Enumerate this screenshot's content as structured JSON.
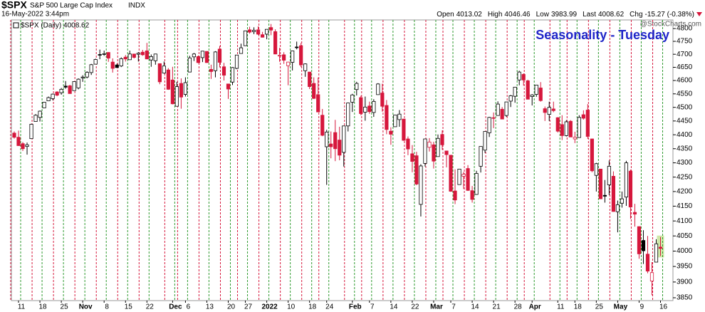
{
  "chart_data": {
    "type": "candlestick",
    "title": "$SPX",
    "subtitle": "S&P 500 Large Cap Index",
    "exchange": "INDX",
    "date": "16-May-2022 3:44pm",
    "quote": [
      {
        "label": "Open",
        "value": "4013.02"
      },
      {
        "label": "High",
        "value": "4046.46"
      },
      {
        "label": "Low",
        "value": "3983.99"
      },
      {
        "label": "Last",
        "value": "4008.62"
      },
      {
        "label": "Chg",
        "value": "-15.27 (-0.38%)"
      }
    ],
    "watermark": "@StockCharts.com",
    "legend": "$SPX (Daily) 4008.62",
    "annotation": "Seasonality - Tuesday",
    "log_scale": true,
    "up_color": "#000000",
    "down_color": "#d6173c",
    "categories": [
      null,
      "11",
      null,
      null,
      null,
      null,
      "18",
      null,
      null,
      null,
      null,
      "25",
      null,
      null,
      null,
      null,
      "Nov",
      null,
      null,
      null,
      null,
      "8",
      null,
      null,
      null,
      null,
      "15",
      null,
      null,
      null,
      null,
      "22",
      null,
      null,
      null,
      null,
      null,
      "Dec",
      null,
      null,
      "6",
      null,
      null,
      null,
      null,
      "13",
      null,
      null,
      null,
      null,
      "20",
      null,
      null,
      null,
      "27",
      null,
      null,
      null,
      null,
      "2022",
      null,
      null,
      null,
      null,
      "10",
      null,
      null,
      null,
      null,
      "18",
      null,
      null,
      null,
      "24",
      null,
      null,
      null,
      null,
      null,
      "Feb",
      null,
      null,
      null,
      "7",
      null,
      null,
      null,
      null,
      "14",
      null,
      null,
      null,
      null,
      "22",
      null,
      null,
      null,
      null,
      "Mar",
      null,
      null,
      null,
      "7",
      null,
      null,
      null,
      null,
      "14",
      null,
      null,
      null,
      null,
      "21",
      null,
      null,
      null,
      null,
      "28",
      null,
      null,
      null,
      "Apr",
      null,
      null,
      null,
      null,
      null,
      "11",
      null,
      null,
      null,
      "18",
      null,
      null,
      null,
      null,
      "25",
      null,
      null,
      null,
      null,
      "May",
      null,
      null,
      null,
      null,
      "9",
      null,
      null,
      null,
      null,
      "16"
    ],
    "open": [
      4406,
      4391,
      4368,
      4358,
      4386,
      4448,
      4463,
      4498,
      4524,
      4532,
      4557,
      4554,
      4579,
      4580,
      4562,
      4572,
      4610,
      4613,
      4630,
      4662,
      4699,
      4701,
      4707,
      4670,
      4659,
      4655,
      4689,
      4679,
      4701,
      4700,
      4708,
      4713,
      4678,
      4675,
      4664,
      4628,
      4640,
      4602,
      4504,
      4589,
      4548,
      4632,
      4690,
      4691,
      4687,
      4711,
      4642,
      4637,
      4720,
      4652,
      4587,
      4594,
      4646,
      4703,
      4733,
      4795,
      4788,
      4795,
      4776,
      4778,
      4804,
      4788,
      4693,
      4698,
      4656,
      4669,
      4728,
      4733,
      4637,
      4632,
      4589,
      4547,
      4471,
      4357,
      4367,
      4408,
      4381,
      4337,
      4432,
      4519,
      4566,
      4536,
      4482,
      4505,
      4481,
      4547,
      4553,
      4507,
      4413,
      4429,
      4455,
      4457,
      4385,
      4332,
      4325,
      4156,
      4298,
      4355,
      4364,
      4322,
      4401,
      4342,
      4327,
      4202,
      4224,
      4253,
      4280,
      4203,
      4190,
      4288,
      4345,
      4407,
      4462,
      4470,
      4493,
      4470,
      4523,
      4541,
      4602,
      4623,
      4599,
      4540,
      4548,
      4572,
      4495,
      4474,
      4494,
      4462,
      4437,
      4397,
      4449,
      4385,
      4390,
      4473,
      4490,
      4385,
      4256,
      4278,
      4187,
      4223,
      4253,
      4131,
      4160,
      4181,
      4271,
      4129,
      4081,
      4035,
      3990,
      3903,
      3964,
      4013.02
    ],
    "high": [
      4412,
      4415,
      4374,
      4372,
      4440,
      4475,
      4488,
      4520,
      4540,
      4551,
      4560,
      4572,
      4598,
      4584,
      4597,
      4608,
      4620,
      4635,
      4663,
      4683,
      4718,
      4714,
      4708,
      4684,
      4664,
      4688,
      4697,
      4714,
      4701,
      4708,
      4717,
      4744,
      4699,
      4702,
      4664,
      4672,
      4647,
      4652,
      4595,
      4608,
      4612,
      4694,
      4705,
      4695,
      4713,
      4711,
      4660,
      4712,
      4732,
      4667,
      4588,
      4651,
      4697,
      4741,
      4792,
      4807,
      4805,
      4809,
      4787,
      4797,
      4818,
      4797,
      4725,
      4708,
      4671,
      4714,
      4749,
      4744,
      4665,
      4632,
      4612,
      4611,
      4494,
      4418,
      4412,
      4454,
      4429,
      4432,
      4517,
      4550,
      4595,
      4543,
      4540,
      4521,
      4530,
      4590,
      4588,
      4527,
      4427,
      4473,
      4490,
      4457,
      4394,
      4363,
      4339,
      4295,
      4385,
      4388,
      4375,
      4401,
      4416,
      4342,
      4327,
      4277,
      4277,
      4268,
      4292,
      4219,
      4272,
      4358,
      4412,
      4465,
      4481,
      4522,
      4501,
      4520,
      4546,
      4576,
      4637,
      4627,
      4603,
      4549,
      4583,
      4594,
      4503,
      4521,
      4521,
      4464,
      4471,
      4453,
      4453,
      4411,
      4471,
      4489,
      4512,
      4386,
      4300,
      4278,
      4240,
      4308,
      4270,
      4169,
      4200,
      4307,
      4276,
      4158,
      4082,
      4069,
      4050,
      3964,
      4039,
      4046.46
    ],
    "low": [
      4386,
      4360,
      4342,
      4329,
      4386,
      4448,
      4448,
      4498,
      4524,
      4526,
      4541,
      4547,
      4569,
      4551,
      4562,
      4567,
      4595,
      4608,
      4621,
      4662,
      4681,
      4694,
      4671,
      4630,
      4648,
      4651,
      4672,
      4679,
      4684,
      4672,
      4694,
      4681,
      4652,
      4660,
      4586,
      4626,
      4565,
      4511,
      4504,
      4495,
      4540,
      4632,
      4674,
      4666,
      4670,
      4667,
      4606,
      4612,
      4650,
      4600,
      4531,
      4583,
      4643,
      4703,
      4733,
      4780,
      4778,
      4775,
      4765,
      4758,
      4774,
      4700,
      4671,
      4663,
      4582,
      4638,
      4719,
      4651,
      4614,
      4568,
      4531,
      4483,
      4395,
      4223,
      4316,
      4306,
      4309,
      4287,
      4412,
      4483,
      4544,
      4471,
      4451,
      4476,
      4465,
      4547,
      4484,
      4402,
      4364,
      4429,
      4429,
      4378,
      4327,
      4267,
      4222,
      4115,
      4287,
      4340,
      4280,
      4322,
      4346,
      4284,
      4199,
      4157,
      4224,
      4209,
      4202,
      4162,
      4189,
      4266,
      4335,
      4392,
      4424,
      4469,
      4456,
      4465,
      4501,
      4517,
      4582,
      4581,
      4530,
      4507,
      4539,
      4521,
      4450,
      4450,
      4482,
      4408,
      4381,
      4394,
      4392,
      4370,
      4390,
      4455,
      4385,
      4267,
      4200,
      4175,
      4162,
      4188,
      4131,
      4062,
      4145,
      4151,
      4107,
      4081,
      3975,
      3958,
      3928,
      3858,
      3964,
      3983.99
    ],
    "close": [
      4391,
      4361,
      4350,
      4364,
      4438,
      4471,
      4486,
      4519,
      4536,
      4549,
      4545,
      4567,
      4575,
      4551,
      4596,
      4605,
      4613,
      4631,
      4660,
      4680,
      4697,
      4702,
      4685,
      4646,
      4649,
      4683,
      4682,
      4701,
      4688,
      4704,
      4698,
      4682,
      4691,
      4701,
      4595,
      4655,
      4567,
      4513,
      4577,
      4538,
      4592,
      4686,
      4701,
      4668,
      4712,
      4668,
      4634,
      4709,
      4669,
      4620,
      4568,
      4649,
      4697,
      4725,
      4791,
      4786,
      4793,
      4778,
      4766,
      4797,
      4794,
      4701,
      4696,
      4677,
      4670,
      4713,
      4726,
      4659,
      4663,
      4577,
      4533,
      4483,
      4398,
      4410,
      4357,
      4350,
      4327,
      4432,
      4516,
      4546,
      4589,
      4477,
      4501,
      4484,
      4522,
      4587,
      4504,
      4419,
      4402,
      4472,
      4475,
      4380,
      4349,
      4305,
      4226,
      4289,
      4385,
      4374,
      4306,
      4387,
      4364,
      4329,
      4201,
      4171,
      4278,
      4260,
      4204,
      4173,
      4263,
      4358,
      4412,
      4463,
      4461,
      4512,
      4457,
      4520,
      4543,
      4575,
      4632,
      4602,
      4530,
      4546,
      4583,
      4525,
      4481,
      4500,
      4488,
      4413,
      4397,
      4447,
      4392,
      4391,
      4463,
      4460,
      4394,
      4272,
      4297,
      4175,
      4184,
      4288,
      4132,
      4155,
      4175,
      4300,
      4147,
      4123,
      3991,
      4001,
      3935,
      3930,
      4024,
      4008.62
    ],
    "ylim": [
      3841,
      4834
    ],
    "yticks": [
      3850,
      3900,
      3950,
      4000,
      4050,
      4100,
      4150,
      4200,
      4250,
      4300,
      4350,
      4400,
      4450,
      4500,
      4550,
      4600,
      4650,
      4700,
      4750,
      4800
    ]
  }
}
